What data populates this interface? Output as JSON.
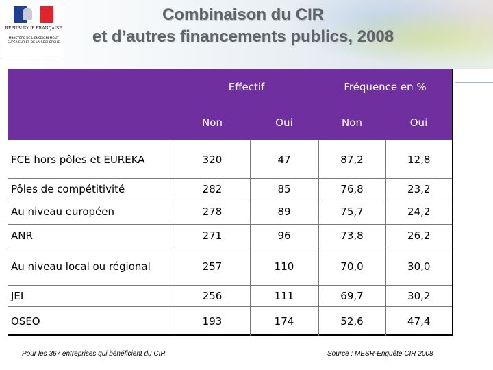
{
  "logo": {
    "republic": "RÉPUBLIQUE FRANÇAISE",
    "ministry": "MINISTÈRE DE L'ENSEIGNEMENT SUPÉRIEUR ET DE LA RECHERCHE",
    "colors": {
      "blue": "#1f3f8f",
      "white": "#ffffff",
      "red": "#e0242c"
    }
  },
  "title": {
    "line1": "Combinaison du CIR",
    "line2": "et d’autres financements publics, 2008"
  },
  "table": {
    "header_color": "#6f2f9e",
    "groups": [
      "Effectif",
      "Fréquence en %"
    ],
    "subheaders": [
      "Non",
      "Oui",
      "Non",
      "Oui"
    ],
    "rows": [
      {
        "label": "FCE hors pôles et EUREKA",
        "values": [
          "320",
          "47",
          "87,2",
          "12,8"
        ]
      },
      {
        "label": "Pôles de compétitivité",
        "values": [
          "282",
          "85",
          "76,8",
          "23,2"
        ]
      },
      {
        "label": "Au niveau européen",
        "values": [
          "278",
          "89",
          "75,7",
          "24,2"
        ]
      },
      {
        "label": "ANR",
        "values": [
          "271",
          "96",
          "73,8",
          "26,2"
        ]
      },
      {
        "label": "Au niveau local ou régional",
        "values": [
          "257",
          "110",
          "70,0",
          "30,0"
        ]
      },
      {
        "label": "JEI",
        "values": [
          "256",
          "111",
          "69,7",
          "30,2"
        ]
      },
      {
        "label": "OSEO",
        "values": [
          "193",
          "174",
          "52,6",
          "47,4"
        ]
      }
    ]
  },
  "footnote": "Pour les 367 entreprises qui bénéficient du CIR",
  "source": "Source : MESR-Enquête CIR 2008"
}
